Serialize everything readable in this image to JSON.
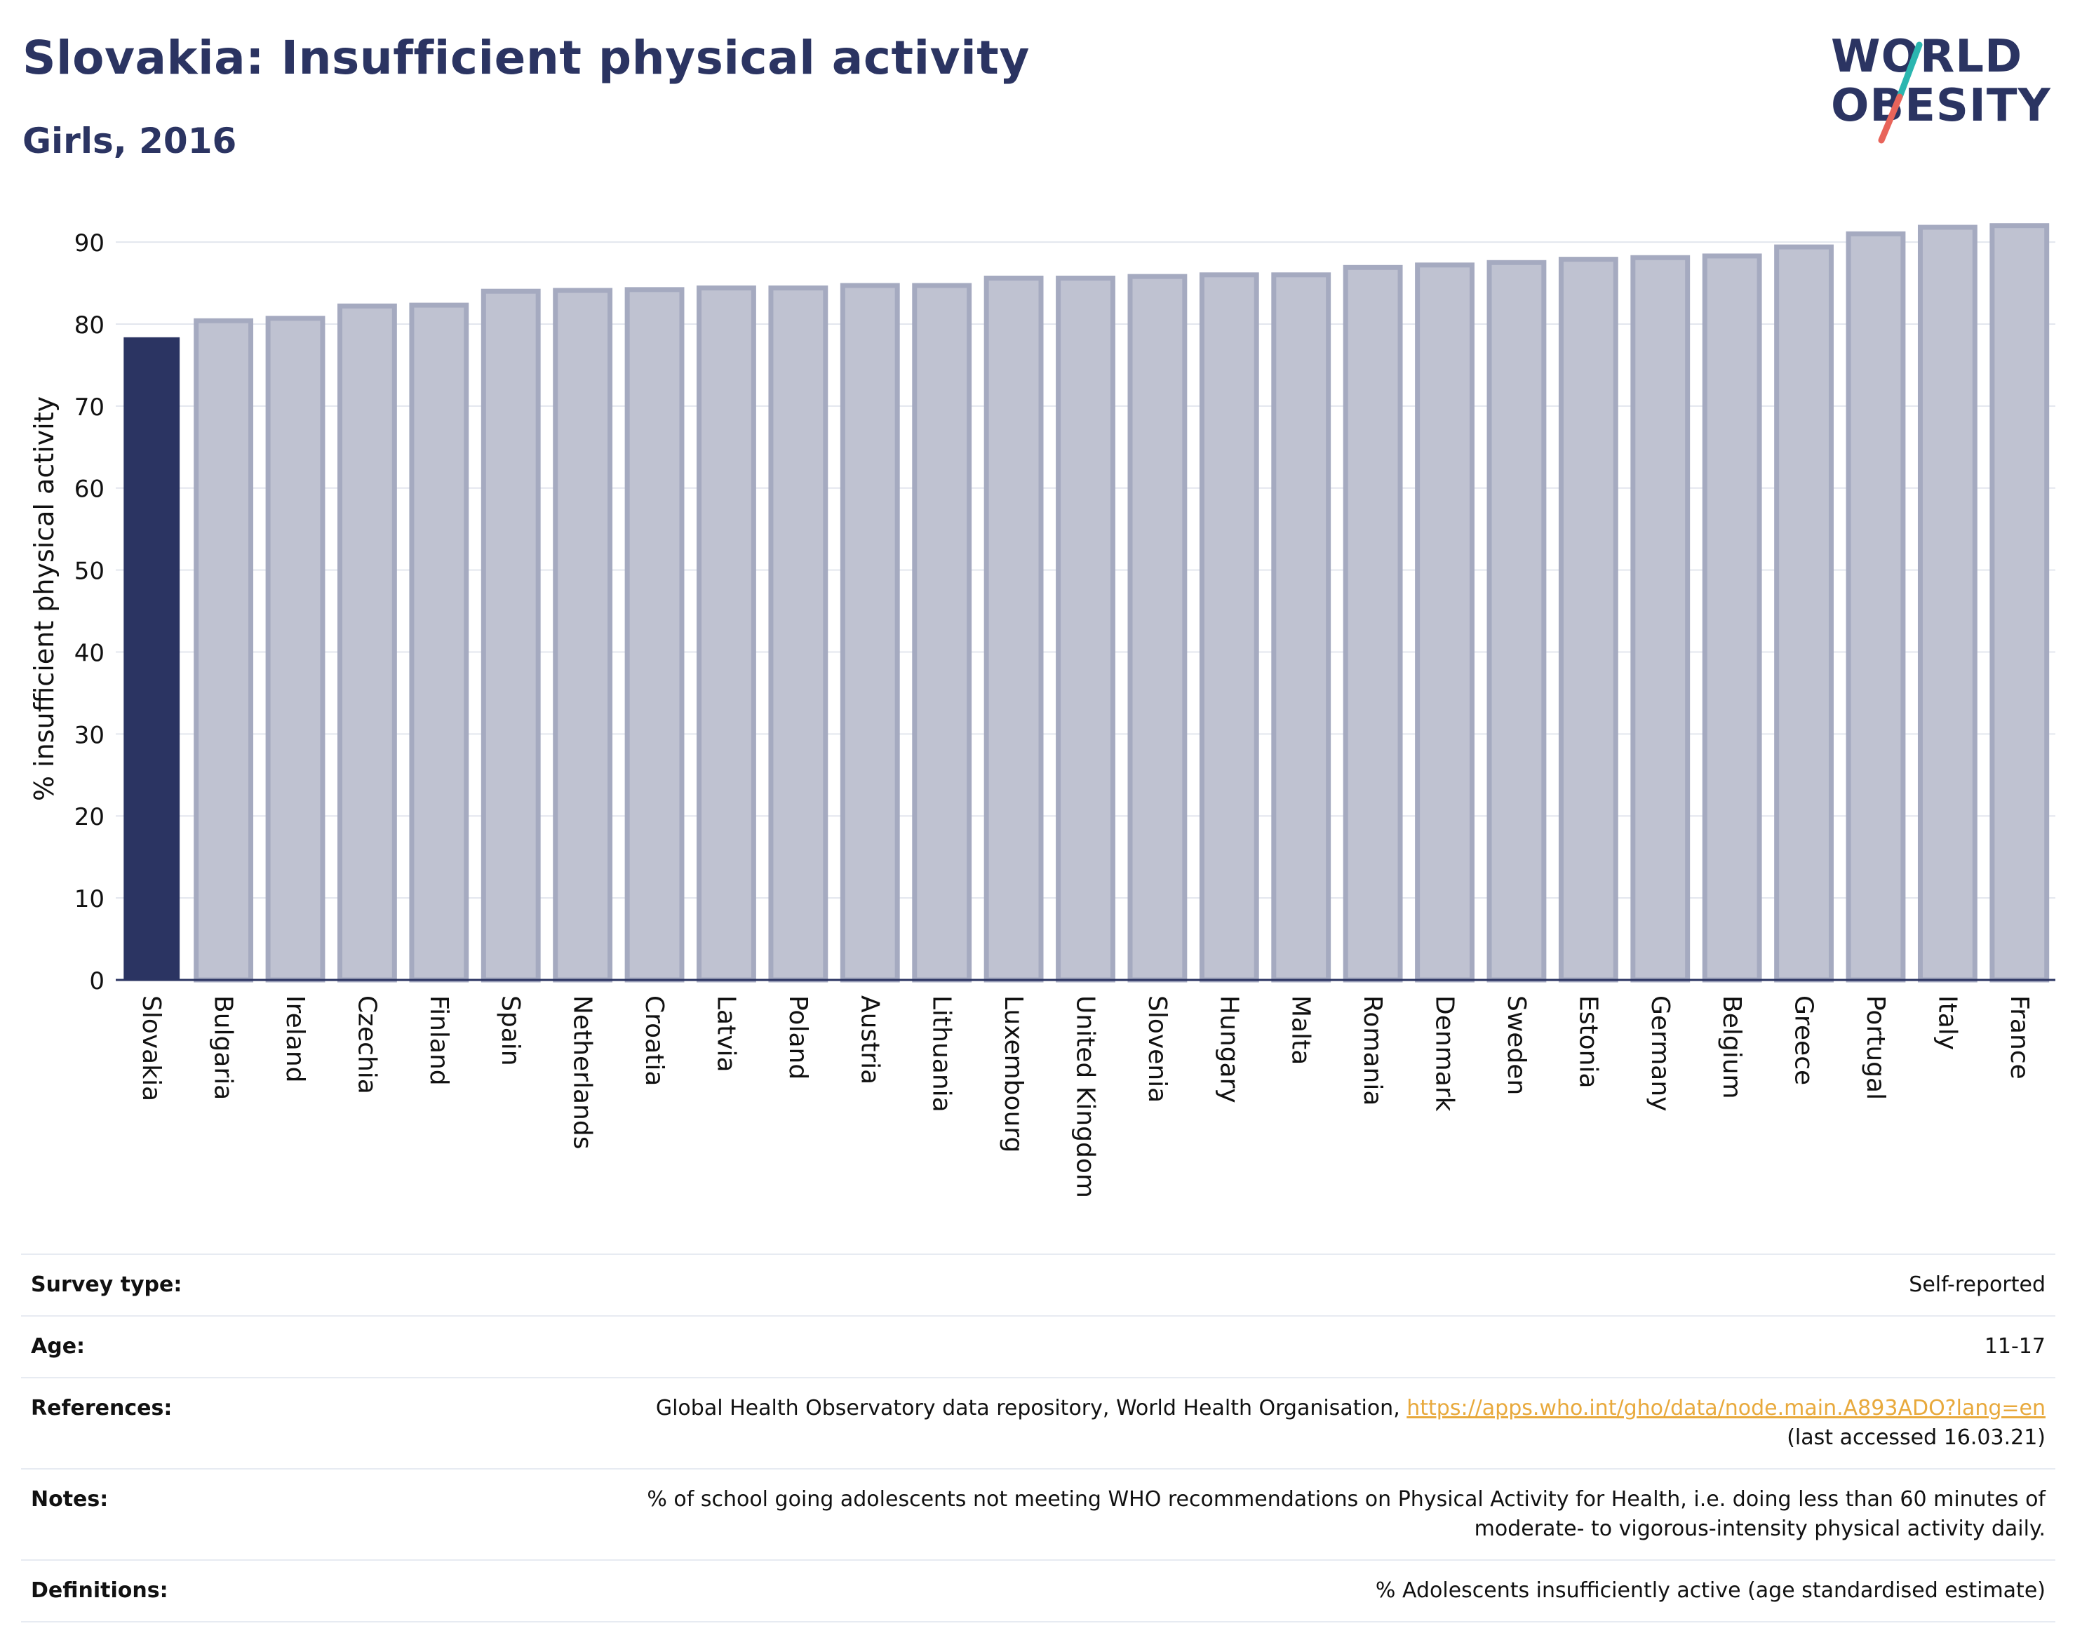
{
  "header": {
    "title": "Slovakia: Insufficient physical activity",
    "subtitle": "Girls, 2016"
  },
  "logo": {
    "line1": "WORLD",
    "line2": "OBESITY",
    "accent_colors": [
      "#2bb6b0",
      "#e8645a"
    ]
  },
  "colors": {
    "highlight_bar": "#2b3462",
    "other_bar_fill": "#bfc2d1",
    "other_bar_stroke": "#a5aac0",
    "text": "#2b3462",
    "link": "#e8a93c"
  },
  "chart_data": {
    "type": "bar",
    "title": "",
    "xlabel": "",
    "ylabel": "% insufficient physical activity",
    "ylim": [
      0,
      93
    ],
    "yticks": [
      0,
      10,
      20,
      30,
      40,
      50,
      60,
      70,
      80,
      90
    ],
    "grid": true,
    "highlight": "Slovakia",
    "categories": [
      "Slovakia",
      "Bulgaria",
      "Ireland",
      "Czechia",
      "Finland",
      "Spain",
      "Netherlands",
      "Croatia",
      "Latvia",
      "Poland",
      "Austria",
      "Lithuania",
      "Luxembourg",
      "United Kingdom",
      "Slovenia",
      "Hungary",
      "Malta",
      "Romania",
      "Denmark",
      "Sweden",
      "Estonia",
      "Germany",
      "Belgium",
      "Greece",
      "Portugal",
      "Italy",
      "France"
    ],
    "values": [
      78.3,
      80.4,
      80.7,
      82.2,
      82.3,
      84.0,
      84.1,
      84.2,
      84.4,
      84.4,
      84.7,
      84.7,
      85.6,
      85.6,
      85.8,
      86.0,
      86.0,
      86.9,
      87.2,
      87.5,
      87.9,
      88.1,
      88.3,
      89.4,
      91.0,
      91.8,
      92.0
    ]
  },
  "info": {
    "survey_label": "Survey type:",
    "survey_value": "Self-reported",
    "age_label": "Age:",
    "age_value": "11-17",
    "references_label": "References:",
    "references_text": "Global Health Observatory data repository, World Health Organisation, ",
    "references_link": "https://apps.who.int/gho/data/node.main.A893ADO?lang=en",
    "references_access": "(last accessed 16.03.21)",
    "notes_label": "Notes:",
    "notes_line1": "% of school going adolescents not meeting WHO recommendations on Physical Activity for Health, i.e. doing less than 60 minutes of",
    "notes_line2": "moderate- to vigorous-intensity physical activity daily.",
    "definitions_label": "Definitions:",
    "definitions_value": "% Adolescents insufficiently active (age standardised estimate)"
  }
}
